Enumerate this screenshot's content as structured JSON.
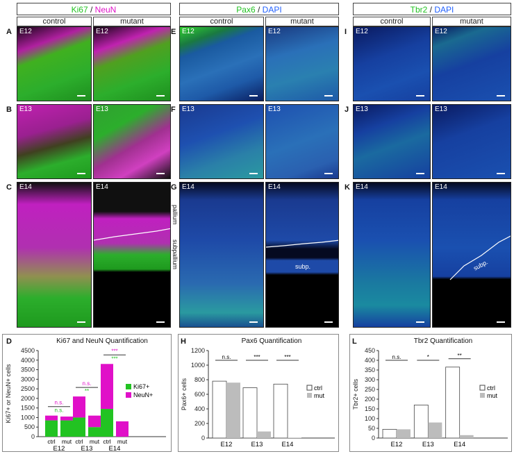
{
  "headers": {
    "ki67": {
      "a": "Ki67",
      "sep": " / ",
      "b": "NeuN"
    },
    "pax6": {
      "a": "Pax6",
      "sep": " / ",
      "b": "DAPI"
    },
    "tbr2": {
      "a": "Tbr2",
      "sep": " / ",
      "b": "DAPI"
    },
    "control": "control",
    "mutant": "mutant"
  },
  "panel_letters": {
    "A": "A",
    "B": "B",
    "C": "C",
    "D": "D",
    "E": "E",
    "F": "F",
    "G": "G",
    "H": "H",
    "I": "I",
    "J": "J",
    "K": "K",
    "L": "L"
  },
  "ages": {
    "e12": "E12",
    "e13": "E13",
    "e14": "E14"
  },
  "annotations": {
    "pallium": "pallium",
    "subpallium": "subpallium",
    "subp": "subp."
  },
  "colors": {
    "ki67": "#22c322",
    "neun": "#e010c8",
    "dapi": "#2060ff",
    "mut_bar": "#bcbcbc"
  },
  "chart_data": [
    {
      "id": "D",
      "type": "bar",
      "stacked": true,
      "title": "Ki67 and NeuN Quantification",
      "ylabel": "Ki67+ or NeuN+ cells",
      "ylim": [
        0,
        4500
      ],
      "yticks": [
        0,
        500,
        1000,
        1500,
        2000,
        2500,
        3000,
        3500,
        4000,
        4500
      ],
      "groups": [
        "E12",
        "E13",
        "E14"
      ],
      "bar_labels": [
        "ctrl",
        "mut"
      ],
      "series": [
        {
          "name": "Ki67+",
          "values": {
            "E12": [
              850,
              850
            ],
            "E13": [
              1000,
              500
            ],
            "E14": [
              1450,
              0
            ]
          }
        },
        {
          "name": "NeuN+",
          "values": {
            "E12": [
              250,
              200
            ],
            "E13": [
              1100,
              600
            ],
            "E14": [
              2350,
              800
            ]
          }
        }
      ],
      "significance": {
        "NeuN": [
          "n.s.",
          "n.s.",
          "***"
        ],
        "Ki67": [
          "n.s.",
          "**",
          "***"
        ]
      }
    },
    {
      "id": "H",
      "type": "bar",
      "title": "Pax6 Quantification",
      "ylabel": "Pax6+ cells",
      "ylim": [
        0,
        1200
      ],
      "yticks": [
        0,
        200,
        400,
        600,
        800,
        1000,
        1200
      ],
      "categories": [
        "E12",
        "E13",
        "E14"
      ],
      "series": [
        {
          "name": "ctrl",
          "values": [
            780,
            690,
            740
          ]
        },
        {
          "name": "mut",
          "values": [
            760,
            90,
            5
          ]
        }
      ],
      "significance": [
        "n.s.",
        "***",
        "***"
      ]
    },
    {
      "id": "L",
      "type": "bar",
      "title": "Tbr2 Quantification",
      "ylabel": "Tbr2+ cells",
      "ylim": [
        0,
        450
      ],
      "yticks": [
        0,
        50,
        100,
        150,
        200,
        250,
        300,
        350,
        400,
        450
      ],
      "categories": [
        "E12",
        "E13",
        "E14"
      ],
      "series": [
        {
          "name": "ctrl",
          "values": [
            45,
            170,
            365
          ]
        },
        {
          "name": "mut",
          "values": [
            45,
            80,
            15
          ]
        }
      ],
      "significance": [
        "n.s.",
        "*",
        "**"
      ]
    }
  ]
}
